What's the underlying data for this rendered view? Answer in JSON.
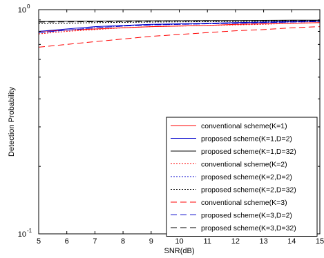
{
  "chart_data": {
    "type": "line",
    "title": "",
    "xlabel": "SNR(dB)",
    "ylabel": "Detection Probability",
    "xlim": [
      5,
      15
    ],
    "ylim": [
      0.1,
      1
    ],
    "yscale": "log",
    "grid": false,
    "legend_position": "bottom-right",
    "x_ticks": [
      5,
      6,
      7,
      8,
      9,
      10,
      11,
      12,
      13,
      14,
      15
    ],
    "x_tick_labels": [
      "5",
      "6",
      "7",
      "8",
      "9",
      "10",
      "11",
      "12",
      "13",
      "14",
      "15"
    ],
    "y_ticks": [
      0.1,
      1
    ],
    "y_tick_base": [
      "10",
      "10"
    ],
    "y_tick_exp": [
      "-1",
      "0"
    ],
    "x": [
      5,
      6,
      7,
      8,
      9,
      10,
      11,
      12,
      13,
      14,
      15
    ],
    "series": [
      {
        "name": "conventional scheme(K=1)",
        "color": "#ff0000",
        "dash": "solid",
        "values": [
          0.8,
          0.81,
          0.82,
          0.83,
          0.84,
          0.845,
          0.85,
          0.86,
          0.865,
          0.87,
          0.875
        ]
      },
      {
        "name": "proposed scheme(K=1,D=2)",
        "color": "#0000cc",
        "dash": "solid",
        "values": [
          0.8,
          0.82,
          0.84,
          0.85,
          0.86,
          0.865,
          0.87,
          0.875,
          0.88,
          0.885,
          0.89
        ]
      },
      {
        "name": "proposed scheme(K=1,D=32)",
        "color": "#000000",
        "dash": "solid",
        "values": [
          0.885,
          0.887,
          0.889,
          0.891,
          0.892,
          0.893,
          0.894,
          0.895,
          0.896,
          0.897,
          0.898
        ]
      },
      {
        "name": "conventional scheme(K=2)",
        "color": "#ff0000",
        "dash": "dotted",
        "values": [
          0.78,
          0.8,
          0.815,
          0.83,
          0.84,
          0.845,
          0.85,
          0.855,
          0.86,
          0.87,
          0.875
        ]
      },
      {
        "name": "proposed scheme(K=2,D=2)",
        "color": "#0000cc",
        "dash": "dotted",
        "values": [
          0.79,
          0.81,
          0.83,
          0.845,
          0.855,
          0.86,
          0.865,
          0.87,
          0.875,
          0.88,
          0.885
        ]
      },
      {
        "name": "proposed scheme(K=2,D=32)",
        "color": "#000000",
        "dash": "dotted",
        "values": [
          0.865,
          0.87,
          0.875,
          0.878,
          0.88,
          0.882,
          0.884,
          0.886,
          0.888,
          0.89,
          0.892
        ]
      },
      {
        "name": "conventional scheme(K=3)",
        "color": "#ff0000",
        "dash": "dashed",
        "values": [
          0.68,
          0.7,
          0.72,
          0.74,
          0.76,
          0.775,
          0.79,
          0.805,
          0.815,
          0.83,
          0.84
        ]
      },
      {
        "name": "proposed scheme(K=3,D=2)",
        "color": "#0000cc",
        "dash": "dashed",
        "values": [
          0.79,
          0.81,
          0.83,
          0.845,
          0.855,
          0.86,
          0.865,
          0.87,
          0.875,
          0.88,
          0.885
        ]
      },
      {
        "name": "proposed scheme(K=3,D=32)",
        "color": "#000000",
        "dash": "dashed",
        "values": [
          0.88,
          0.882,
          0.884,
          0.886,
          0.888,
          0.89,
          0.891,
          0.892,
          0.893,
          0.894,
          0.895
        ]
      }
    ]
  }
}
